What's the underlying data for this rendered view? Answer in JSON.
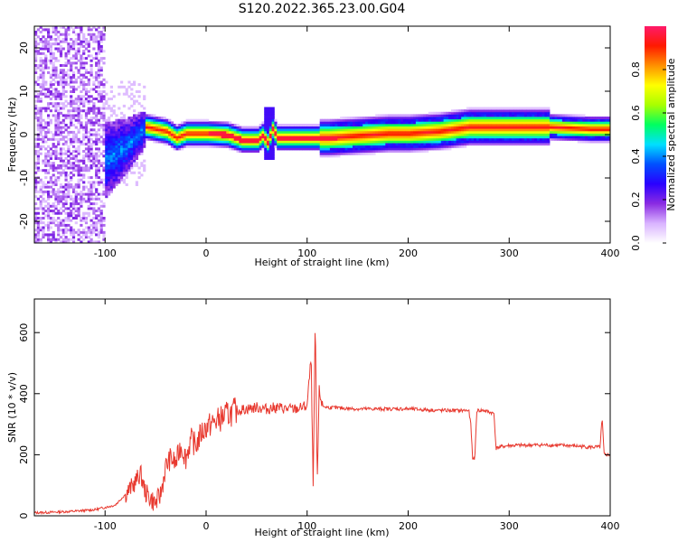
{
  "title": "S120.2022.365.23.00.G04",
  "chart_data": [
    {
      "type": "heatmap",
      "xlabel": "Height of straight line (km)",
      "ylabel": "Frequency (Hz)",
      "xlim": [
        -170,
        400
      ],
      "ylim": [
        -25,
        25
      ],
      "x_ticks": [
        -100,
        0,
        100,
        200,
        300,
        400
      ],
      "y_ticks": [
        -20,
        -10,
        0,
        10,
        20
      ],
      "grid": false,
      "colorbar": {
        "label": "Normalized spectral amplitude",
        "range": [
          0,
          1
        ],
        "ticks": [
          "0.0",
          "0.2",
          "0.4",
          "0.6",
          "0.8"
        ],
        "colormap": [
          "#ffffff",
          "#d9b3ff",
          "#8a2be2",
          "#2a00ff",
          "#0050ff",
          "#00e0ff",
          "#00ff60",
          "#a8ff00",
          "#ffff00",
          "#ff9000",
          "#ff1a00",
          "#ff1a6a"
        ]
      },
      "ridge": {
        "x": [
          -100,
          -80,
          -60,
          -50,
          -40,
          -30,
          -20,
          0,
          20,
          35,
          50,
          55,
          60,
          65,
          70,
          80,
          100,
          120,
          150,
          180,
          200,
          230,
          260,
          300,
          340,
          380,
          400
        ],
        "freq": [
          -6,
          -3,
          1.5,
          1,
          0.5,
          -1,
          0,
          0,
          -0.3,
          -1.5,
          -1.5,
          -0.5,
          -2,
          1,
          -1,
          -1,
          -1,
          -1,
          -0.5,
          0,
          0,
          0.5,
          1.5,
          1.5,
          1.5,
          1,
          1
        ]
      }
    },
    {
      "type": "line",
      "xlabel": "Height of straight line (km)",
      "ylabel": "SNR (10 * v/v)",
      "xlim": [
        -170,
        400
      ],
      "ylim": [
        0,
        710
      ],
      "x_ticks": [
        -100,
        0,
        100,
        200,
        300,
        400
      ],
      "y_ticks": [
        0,
        200,
        400,
        600
      ],
      "grid": false,
      "series_color": "#e8392f",
      "x": [
        -170,
        -150,
        -130,
        -110,
        -90,
        -80,
        -70,
        -65,
        -60,
        -50,
        -45,
        -40,
        -35,
        -30,
        -25,
        -20,
        -15,
        -10,
        -5,
        0,
        10,
        20,
        30,
        40,
        50,
        60,
        70,
        80,
        90,
        100,
        104,
        106,
        108,
        110,
        112,
        115,
        120,
        150,
        180,
        200,
        230,
        260,
        262,
        264,
        266,
        268,
        275,
        285,
        287,
        290,
        300,
        330,
        360,
        380,
        390,
        392,
        394,
        400
      ],
      "y": [
        10,
        12,
        15,
        20,
        35,
        70,
        110,
        140,
        75,
        40,
        70,
        160,
        190,
        170,
        230,
        190,
        250,
        230,
        270,
        290,
        310,
        330,
        345,
        350,
        355,
        350,
        355,
        350,
        350,
        360,
        520,
        80,
        650,
        100,
        410,
        360,
        355,
        350,
        350,
        350,
        345,
        345,
        300,
        180,
        190,
        345,
        345,
        335,
        220,
        225,
        230,
        232,
        230,
        225,
        225,
        320,
        200,
        200
      ]
    }
  ]
}
